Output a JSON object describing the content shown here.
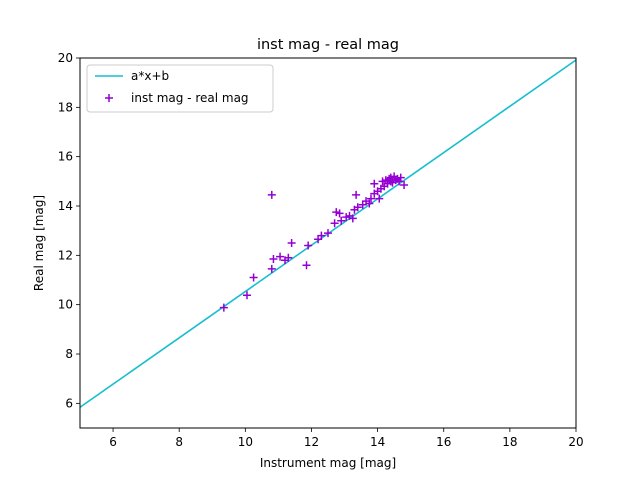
{
  "chart_data": {
    "type": "scatter",
    "title": "inst mag - real mag",
    "xlabel": "Instrument mag [mag]",
    "ylabel": "Real mag [mag]",
    "xlim": [
      5,
      20
    ],
    "ylim": [
      5,
      20
    ],
    "xticks": [
      6,
      8,
      10,
      12,
      14,
      16,
      18,
      20
    ],
    "yticks": [
      6,
      8,
      10,
      12,
      14,
      16,
      18,
      20
    ],
    "grid": false,
    "legend_position": "upper-left",
    "line": {
      "name": "a*x+b",
      "color": "#17becf",
      "x": [
        5,
        20
      ],
      "y": [
        5.84,
        19.92
      ]
    },
    "scatter": {
      "name": "inst mag - real mag",
      "color": "#9400d3",
      "marker": "+",
      "points": [
        [
          9.35,
          9.88
        ],
        [
          10.05,
          10.38
        ],
        [
          10.25,
          11.1
        ],
        [
          10.8,
          11.45
        ],
        [
          10.8,
          14.45
        ],
        [
          10.85,
          11.85
        ],
        [
          11.05,
          11.95
        ],
        [
          11.2,
          11.8
        ],
        [
          11.3,
          11.9
        ],
        [
          11.4,
          12.5
        ],
        [
          11.85,
          11.6
        ],
        [
          11.9,
          12.4
        ],
        [
          12.2,
          12.65
        ],
        [
          12.3,
          12.8
        ],
        [
          12.5,
          12.9
        ],
        [
          12.7,
          13.3
        ],
        [
          12.75,
          13.75
        ],
        [
          12.85,
          13.7
        ],
        [
          12.9,
          13.4
        ],
        [
          13.05,
          13.55
        ],
        [
          13.15,
          13.6
        ],
        [
          13.25,
          13.5
        ],
        [
          13.3,
          13.85
        ],
        [
          13.35,
          14.45
        ],
        [
          13.4,
          13.95
        ],
        [
          13.55,
          14.05
        ],
        [
          13.65,
          14.2
        ],
        [
          13.75,
          14.1
        ],
        [
          13.8,
          14.3
        ],
        [
          13.9,
          14.5
        ],
        [
          13.9,
          14.9
        ],
        [
          14.0,
          14.6
        ],
        [
          14.05,
          14.3
        ],
        [
          14.1,
          14.7
        ],
        [
          14.15,
          15.0
        ],
        [
          14.2,
          14.8
        ],
        [
          14.3,
          14.9
        ],
        [
          14.35,
          15.1
        ],
        [
          14.4,
          15.15
        ],
        [
          14.45,
          14.95
        ],
        [
          14.5,
          15.2
        ],
        [
          14.55,
          15.05
        ],
        [
          14.6,
          15.1
        ],
        [
          14.65,
          15.0
        ],
        [
          14.7,
          15.15
        ],
        [
          14.8,
          14.85
        ],
        [
          14.4,
          15.0
        ],
        [
          14.25,
          15.05
        ]
      ]
    }
  }
}
